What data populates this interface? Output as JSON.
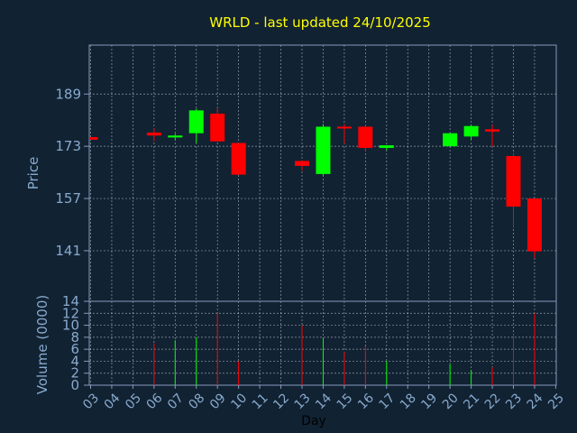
{
  "chart_data": {
    "type": "candlestick",
    "title": "WRLD - last updated 24/10/2025",
    "xlabel": "Day",
    "price_panel": {
      "ylabel": "Price",
      "yticks": [
        141,
        157,
        173,
        189
      ],
      "ylim": [
        125.5,
        204
      ]
    },
    "volume_panel": {
      "ylabel": "Volume (0000)",
      "yticks": [
        0,
        2,
        4,
        6,
        8,
        10,
        12,
        14
      ],
      "ylim": [
        0,
        14
      ]
    },
    "x_ticks": [
      "03",
      "04",
      "05",
      "06",
      "07",
      "08",
      "09",
      "10",
      "11",
      "12",
      "13",
      "14",
      "15",
      "16",
      "17",
      "18",
      "19",
      "20",
      "21",
      "22",
      "23",
      "24",
      "25"
    ],
    "candles": [
      {
        "day": "03",
        "open": 175.8,
        "close": 175.0,
        "high": 175.8,
        "low": 175.0,
        "volume": 0
      },
      {
        "day": "06",
        "open": 177.2,
        "close": 176.3,
        "high": 178.5,
        "low": 174.5,
        "volume": 7
      },
      {
        "day": "07",
        "open": 175.7,
        "close": 176.3,
        "high": 176.8,
        "low": 174.9,
        "volume": 7.5
      },
      {
        "day": "08",
        "open": 177.0,
        "close": 184.0,
        "high": 184.5,
        "low": 174.0,
        "volume": 8
      },
      {
        "day": "09",
        "open": 183.0,
        "close": 174.5,
        "high": 184.8,
        "low": 174.5,
        "volume": 12
      },
      {
        "day": "10",
        "open": 174.0,
        "close": 164.3,
        "high": 174.0,
        "low": 164.3,
        "volume": 4
      },
      {
        "day": "13",
        "open": 168.5,
        "close": 167.0,
        "high": 168.5,
        "low": 165.5,
        "volume": 10
      },
      {
        "day": "14",
        "open": 164.5,
        "close": 179.0,
        "high": 179.8,
        "low": 164.0,
        "volume": 7.8
      },
      {
        "day": "15",
        "open": 179.0,
        "close": 178.5,
        "high": 179.8,
        "low": 173.8,
        "volume": 5.5
      },
      {
        "day": "16",
        "open": 179.0,
        "close": 172.5,
        "high": 179.5,
        "low": 171.5,
        "volume": 6.5
      },
      {
        "day": "17",
        "open": 172.5,
        "close": 173.3,
        "high": 173.3,
        "low": 171.8,
        "volume": 4
      },
      {
        "day": "20",
        "open": 173.0,
        "close": 177.0,
        "high": 177.0,
        "low": 173.0,
        "volume": 3.5
      },
      {
        "day": "21",
        "open": 176.0,
        "close": 179.2,
        "high": 179.6,
        "low": 175.0,
        "volume": 2.5
      },
      {
        "day": "22",
        "open": 178.2,
        "close": 177.5,
        "high": 179.5,
        "low": 173.0,
        "volume": 3
      },
      {
        "day": "23",
        "open": 170.0,
        "close": 154.5,
        "high": 171.0,
        "low": 148.0,
        "volume": 8.7
      },
      {
        "day": "24",
        "open": 157.0,
        "close": 140.8,
        "high": 157.0,
        "low": 138.8,
        "volume": 12
      }
    ],
    "colors": {
      "background": "#112233",
      "axes": "#8899bb",
      "grid": "#ffffff",
      "up": "#00ff00",
      "down": "#ff0000",
      "title": "#ffff00",
      "labels": "#88aacc"
    },
    "grid": true
  }
}
